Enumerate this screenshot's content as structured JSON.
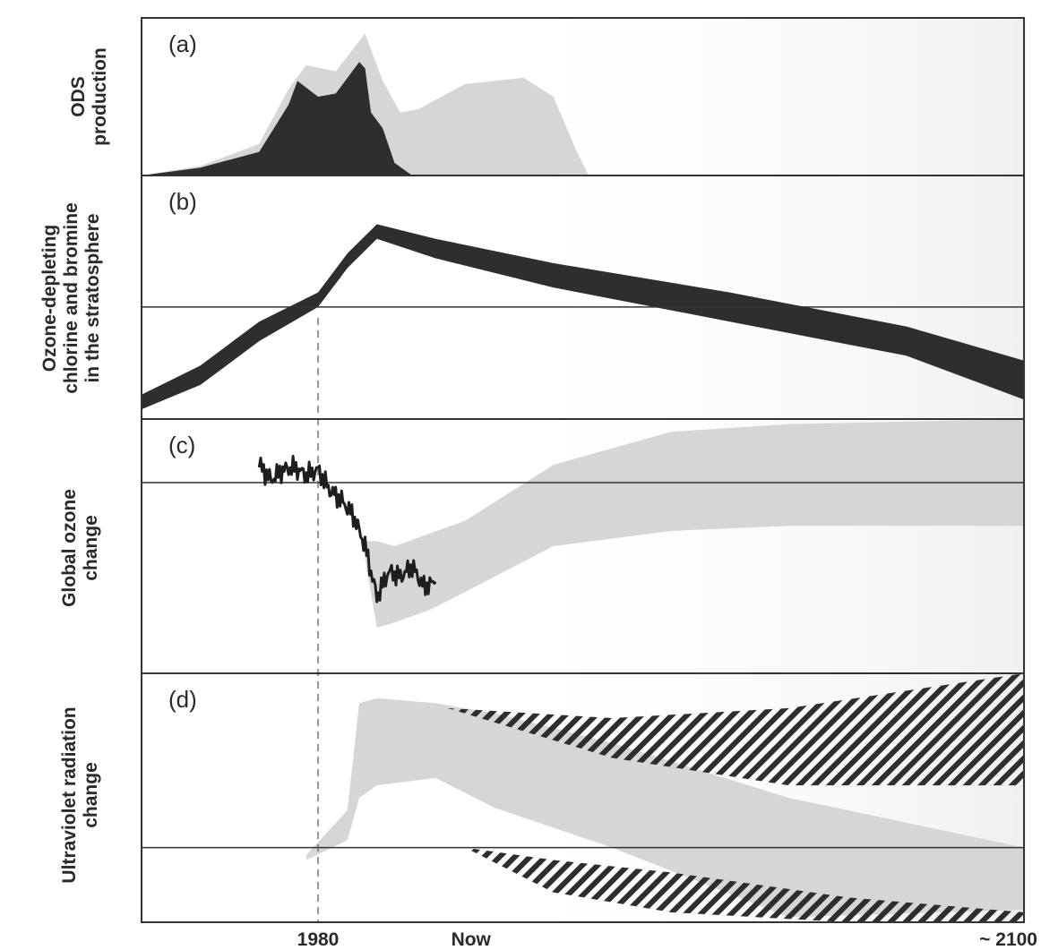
{
  "chart_data": [
    {
      "panel": "(a)",
      "type": "area",
      "ylabel": "ODS\nproduction",
      "x_ticks": [
        "1980",
        "Now",
        "~ 2100"
      ],
      "series": [
        {
          "name": "",
          "color": "#d6d6d6",
          "points": [
            [
              1950,
              0
            ],
            [
              1960,
              0.06
            ],
            [
              1970,
              0.2
            ],
            [
              1975,
              0.55
            ],
            [
              1978,
              0.7
            ],
            [
              1983,
              0.66
            ],
            [
              1988,
              0.9
            ],
            [
              1991,
              0.6
            ],
            [
              1994,
              0.4
            ],
            [
              1997,
              0.42
            ],
            [
              2005,
              0.58
            ],
            [
              2015,
              0.62
            ],
            [
              2020,
              0.5
            ],
            [
              2024,
              0.15
            ],
            [
              2026,
              0
            ]
          ]
        },
        {
          "name": "",
          "color": "#2e2e2e",
          "points": [
            [
              1950,
              0
            ],
            [
              1960,
              0.05
            ],
            [
              1970,
              0.15
            ],
            [
              1975,
              0.45
            ],
            [
              1976.5,
              0.6
            ],
            [
              1980,
              0.5
            ],
            [
              1983,
              0.52
            ],
            [
              1987,
              0.72
            ],
            [
              1988,
              0.68
            ],
            [
              1989,
              0.4
            ],
            [
              1991,
              0.3
            ],
            [
              1993,
              0.08
            ],
            [
              1996,
              0
            ]
          ]
        }
      ]
    },
    {
      "panel": "(b)",
      "type": "area",
      "ylabel": "Ozone-depleting\nchlorine and bromine\nin the stratosphere",
      "reference_level": 0.46,
      "band": [
        [
          1950,
          0.04,
          0.1
        ],
        [
          1960,
          0.14,
          0.22
        ],
        [
          1970,
          0.32,
          0.4
        ],
        [
          1980,
          0.46,
          0.52
        ],
        [
          1985,
          0.62,
          0.68
        ],
        [
          1990,
          0.74,
          0.8
        ],
        [
          2000,
          0.66,
          0.74
        ],
        [
          2020,
          0.54,
          0.64
        ],
        [
          2050,
          0.4,
          0.52
        ],
        [
          2080,
          0.26,
          0.38
        ],
        [
          2100,
          0.08,
          0.24
        ]
      ]
    },
    {
      "panel": "(c)",
      "type": "line",
      "ylabel": "Global ozone\nchange",
      "reference_level": 0.75,
      "band": [
        [
          1988,
          0.45,
          0.52
        ],
        [
          1990,
          0.18,
          0.52
        ],
        [
          1993,
          0.2,
          0.5
        ],
        [
          1999,
          0.25,
          0.55
        ],
        [
          2005,
          0.32,
          0.6
        ],
        [
          2020,
          0.5,
          0.82
        ],
        [
          2040,
          0.56,
          0.95
        ],
        [
          2060,
          0.58,
          0.98
        ],
        [
          2100,
          0.58,
          1.0
        ]
      ],
      "observed": [
        [
          1970,
          0.82
        ],
        [
          1972,
          0.76
        ],
        [
          1974,
          0.8
        ],
        [
          1976,
          0.81
        ],
        [
          1978,
          0.78
        ],
        [
          1980,
          0.8
        ],
        [
          1982,
          0.72
        ],
        [
          1984,
          0.68
        ],
        [
          1986,
          0.62
        ],
        [
          1988,
          0.5
        ],
        [
          1990,
          0.3
        ],
        [
          1992,
          0.4
        ],
        [
          1994,
          0.38
        ],
        [
          1996,
          0.42
        ],
        [
          1998,
          0.34
        ],
        [
          2000,
          0.36
        ]
      ]
    },
    {
      "panel": "(d)",
      "type": "area",
      "ylabel": "Ultraviolet radiation\nchange",
      "reference_level": 0.3,
      "band": [
        [
          1978,
          0.25,
          0.27
        ],
        [
          1985,
          0.33,
          0.45
        ],
        [
          1987,
          0.5,
          0.88
        ],
        [
          1990,
          0.55,
          0.9
        ],
        [
          2000,
          0.58,
          0.88
        ],
        [
          2010,
          0.46,
          0.84
        ],
        [
          2030,
          0.3,
          0.72
        ],
        [
          2060,
          0.02,
          0.5
        ],
        [
          2100,
          0.05,
          0.3
        ]
      ],
      "hatch_upper": [
        [
          2002,
          0.86,
          0.86
        ],
        [
          2030,
          0.66,
          0.82
        ],
        [
          2060,
          0.55,
          0.86
        ],
        [
          2100,
          0.55,
          1.0
        ]
      ],
      "hatch_lower": [
        [
          2005,
          0.3,
          0.3
        ],
        [
          2020,
          0.12,
          0.25
        ],
        [
          2040,
          0.04,
          0.2
        ],
        [
          2070,
          0.0,
          0.1
        ],
        [
          2100,
          0.0,
          0.04
        ]
      ]
    }
  ],
  "x_axis": {
    "start": 1950,
    "end": 2100,
    "marker_year": 1980,
    "ticks": [
      {
        "label": "1980",
        "x": 1980
      },
      {
        "label": "Now",
        "x": 2006
      },
      {
        "label": "~ 2100",
        "x": 2100
      }
    ]
  },
  "colors": {
    "band": "#d6d6d6",
    "dark": "#2e2e2e",
    "frame": "#333333",
    "shade": "#f2f2f2"
  }
}
